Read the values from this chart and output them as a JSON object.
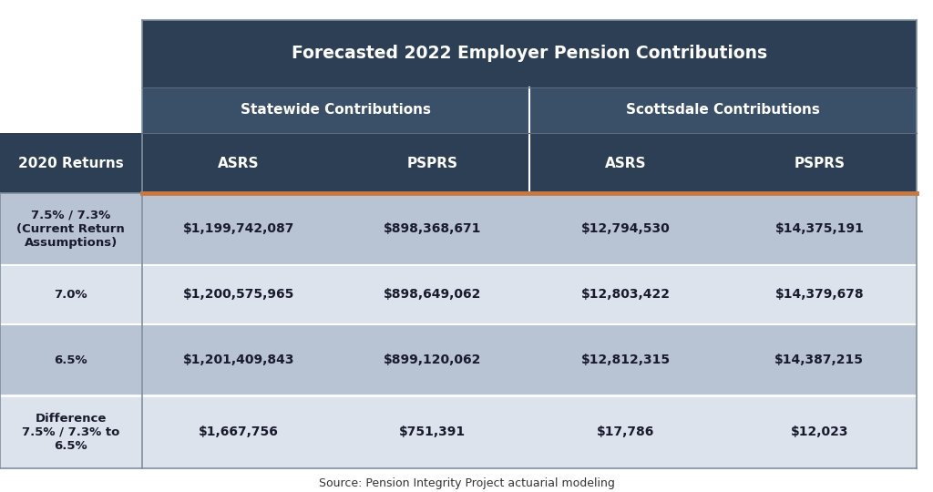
{
  "title": "Forecasted 2022 Employer Pension Contributions",
  "col_group1": "Statewide Contributions",
  "col_group2": "Scottsdale Contributions",
  "col_headers": [
    "2020 Returns",
    "ASRS",
    "PSPRS",
    "ASRS",
    "PSPRS"
  ],
  "rows": [
    {
      "label": "7.5% / 7.3%\n(Current Return\nAssumptions)",
      "values": [
        "$1,199,742,087",
        "$898,368,671",
        "$12,794,530",
        "$14,375,191"
      ],
      "bg": "#b8c3d3"
    },
    {
      "label": "7.0%",
      "values": [
        "$1,200,575,965",
        "$898,649,062",
        "$12,803,422",
        "$14,379,678"
      ],
      "bg": "#dce3ec"
    },
    {
      "label": "6.5%",
      "values": [
        "$1,201,409,843",
        "$899,120,062",
        "$12,812,315",
        "$14,387,215"
      ],
      "bg": "#b8c3d3"
    },
    {
      "label": "Difference\n7.5% / 7.3% to\n6.5%",
      "values": [
        "$1,667,756",
        "$751,391",
        "$17,786",
        "$12,023"
      ],
      "bg": "#dce3ec"
    }
  ],
  "source": "Source: Pension Integrity Project actuarial modeling",
  "header_bg_dark": "#2d3f54",
  "header_bg_medium": "#3a4f68",
  "header_text_color": "#ffffff",
  "data_text_color": "#1a1a2e",
  "accent_line_color": "#c87941",
  "row_label_bg_light": "#dce3ec",
  "row_label_bg_dark": "#b8c3d3",
  "figsize": [
    10.24,
    5.4
  ],
  "dpi": 100
}
